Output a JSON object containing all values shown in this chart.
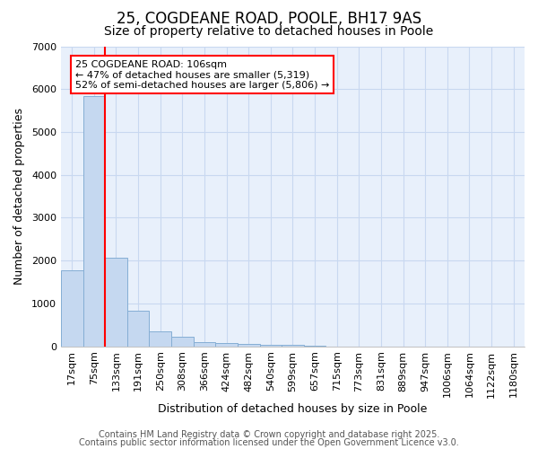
{
  "title": "25, COGDEANE ROAD, POOLE, BH17 9AS",
  "subtitle": "Size of property relative to detached houses in Poole",
  "xlabel": "Distribution of detached houses by size in Poole",
  "ylabel": "Number of detached properties",
  "categories": [
    "17sqm",
    "75sqm",
    "133sqm",
    "191sqm",
    "250sqm",
    "308sqm",
    "366sqm",
    "424sqm",
    "482sqm",
    "540sqm",
    "599sqm",
    "657sqm",
    "715sqm",
    "773sqm",
    "831sqm",
    "889sqm",
    "947sqm",
    "1006sqm",
    "1064sqm",
    "1122sqm",
    "1180sqm"
  ],
  "values": [
    1780,
    5840,
    2060,
    830,
    360,
    220,
    100,
    80,
    60,
    40,
    30,
    20,
    0,
    0,
    0,
    0,
    0,
    0,
    0,
    0,
    0
  ],
  "bar_color": "#c5d8f0",
  "bar_edge_color": "#85aed4",
  "ylim": [
    0,
    7000
  ],
  "annotation_title": "25 COGDEANE ROAD: 106sqm",
  "annotation_line1": "← 47% of detached houses are smaller (5,319)",
  "annotation_line2": "52% of semi-detached houses are larger (5,806) →",
  "footer1": "Contains HM Land Registry data © Crown copyright and database right 2025.",
  "footer2": "Contains public sector information licensed under the Open Government Licence v3.0.",
  "plot_bg_color": "#e8f0fb",
  "fig_bg_color": "#ffffff",
  "grid_color": "#c8d8f0",
  "title_fontsize": 12,
  "subtitle_fontsize": 10,
  "axis_label_fontsize": 9,
  "tick_fontsize": 8,
  "footer_fontsize": 7,
  "red_line_x": 1.5
}
